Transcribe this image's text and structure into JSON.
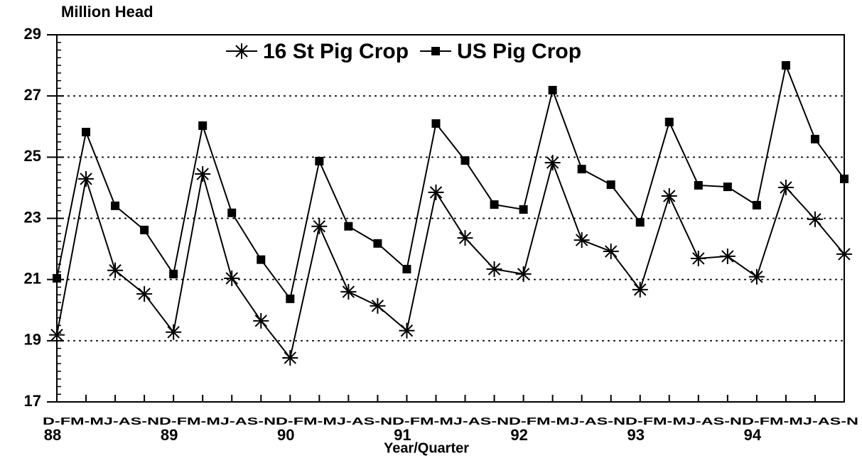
{
  "chart_data": {
    "type": "line",
    "y_label": "Million Head",
    "x_label": "Year/Quarter",
    "quarter_labels": "D-FM-MJ-AS-ND-FM-MJ-AS-ND-FM-MJ-AS-ND-FM-MJ-AS-ND-FM-MJ-AS-ND-FM-MJ-AS-ND-FM-MJ-AS-N",
    "categories": [
      "88",
      null,
      null,
      null,
      "89",
      null,
      null,
      null,
      "90",
      null,
      null,
      null,
      "91",
      null,
      null,
      null,
      "92",
      null,
      null,
      null,
      "93",
      null,
      null,
      null,
      "94",
      null,
      null,
      null
    ],
    "series": [
      {
        "name": "16 St Pig Crop",
        "color": "#000000",
        "marker": "star",
        "values": [
          19.19,
          24.29,
          21.3,
          20.53,
          19.28,
          24.45,
          21.04,
          19.65,
          18.44,
          22.74,
          20.6,
          20.14,
          19.33,
          23.85,
          22.36,
          21.34,
          21.18,
          24.82,
          22.29,
          21.92,
          20.67,
          23.73,
          21.69,
          21.76,
          21.09,
          24.01,
          22.97,
          21.83
        ]
      },
      {
        "name": "US Pig Crop",
        "color": "#000000",
        "marker": "square",
        "values": [
          21.04,
          25.82,
          23.41,
          22.62,
          21.18,
          26.03,
          23.18,
          21.65,
          20.37,
          24.87,
          22.74,
          22.18,
          21.34,
          26.1,
          24.89,
          23.45,
          23.29,
          27.19,
          24.61,
          24.1,
          22.87,
          26.15,
          24.08,
          24.03,
          23.43,
          28.0,
          25.59,
          24.29
        ]
      }
    ],
    "ylim": [
      17,
      29
    ],
    "yticks": [
      17,
      19,
      21,
      23,
      25,
      27,
      29
    ],
    "grid": true,
    "legend": "top"
  }
}
